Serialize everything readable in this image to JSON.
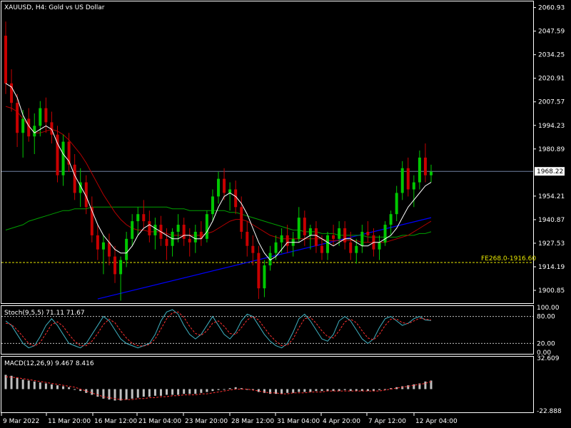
{
  "chart_data": [
    {
      "type": "candlestick",
      "title": "XAUUSD, H4:  Gold vs US Dollar",
      "y_ticks": [
        "2060.93",
        "2047.59",
        "2034.25",
        "2020.91",
        "2007.57",
        "1994.23",
        "1980.89",
        "1954.21",
        "1940.87",
        "1927.53",
        "1914.19",
        "1900.85"
      ],
      "ylim": [
        1894.0,
        2064.0
      ],
      "current_price": "1968.22",
      "current_price_value": 1968.22,
      "fe_line_value": 1916.6,
      "fe_label": "FE268.0-1916.60",
      "candles": [
        {
          "o": 2045,
          "h": 2053,
          "l": 2012,
          "c": 2018
        },
        {
          "o": 2018,
          "h": 2026,
          "l": 2002,
          "c": 2007
        },
        {
          "o": 2007,
          "h": 2012,
          "l": 1982,
          "c": 1990
        },
        {
          "o": 1990,
          "h": 2003,
          "l": 1976,
          "c": 1998
        },
        {
          "o": 1998,
          "h": 2004,
          "l": 1985,
          "c": 1988
        },
        {
          "o": 1988,
          "h": 2001,
          "l": 1978,
          "c": 1994
        },
        {
          "o": 1994,
          "h": 2008,
          "l": 1988,
          "c": 2004
        },
        {
          "o": 2004,
          "h": 2010,
          "l": 1990,
          "c": 1996
        },
        {
          "o": 1996,
          "h": 2002,
          "l": 1984,
          "c": 1989
        },
        {
          "o": 1989,
          "h": 1994,
          "l": 1962,
          "c": 1966
        },
        {
          "o": 1966,
          "h": 1989,
          "l": 1960,
          "c": 1985
        },
        {
          "o": 1985,
          "h": 1990,
          "l": 1968,
          "c": 1972
        },
        {
          "o": 1972,
          "h": 1978,
          "l": 1952,
          "c": 1956
        },
        {
          "o": 1956,
          "h": 1970,
          "l": 1948,
          "c": 1962
        },
        {
          "o": 1962,
          "h": 1966,
          "l": 1944,
          "c": 1948
        },
        {
          "o": 1948,
          "h": 1954,
          "l": 1928,
          "c": 1932
        },
        {
          "o": 1932,
          "h": 1938,
          "l": 1918,
          "c": 1924
        },
        {
          "o": 1924,
          "h": 1932,
          "l": 1910,
          "c": 1928
        },
        {
          "o": 1928,
          "h": 1933,
          "l": 1915,
          "c": 1920
        },
        {
          "o": 1920,
          "h": 1926,
          "l": 1905,
          "c": 1910
        },
        {
          "o": 1910,
          "h": 1920,
          "l": 1895,
          "c": 1918
        },
        {
          "o": 1918,
          "h": 1934,
          "l": 1914,
          "c": 1930
        },
        {
          "o": 1930,
          "h": 1944,
          "l": 1926,
          "c": 1940
        },
        {
          "o": 1940,
          "h": 1948,
          "l": 1932,
          "c": 1944
        },
        {
          "o": 1944,
          "h": 1952,
          "l": 1936,
          "c": 1940
        },
        {
          "o": 1940,
          "h": 1946,
          "l": 1928,
          "c": 1932
        },
        {
          "o": 1932,
          "h": 1942,
          "l": 1924,
          "c": 1938
        },
        {
          "o": 1938,
          "h": 1943,
          "l": 1926,
          "c": 1930
        },
        {
          "o": 1930,
          "h": 1936,
          "l": 1918,
          "c": 1926
        },
        {
          "o": 1926,
          "h": 1936,
          "l": 1920,
          "c": 1934
        },
        {
          "o": 1934,
          "h": 1944,
          "l": 1928,
          "c": 1938
        },
        {
          "o": 1938,
          "h": 1942,
          "l": 1926,
          "c": 1930
        },
        {
          "o": 1930,
          "h": 1936,
          "l": 1920,
          "c": 1928
        },
        {
          "o": 1928,
          "h": 1938,
          "l": 1922,
          "c": 1934
        },
        {
          "o": 1934,
          "h": 1940,
          "l": 1926,
          "c": 1930
        },
        {
          "o": 1930,
          "h": 1946,
          "l": 1928,
          "c": 1944
        },
        {
          "o": 1944,
          "h": 1958,
          "l": 1940,
          "c": 1954
        },
        {
          "o": 1954,
          "h": 1968,
          "l": 1950,
          "c": 1964
        },
        {
          "o": 1964,
          "h": 1970,
          "l": 1952,
          "c": 1956
        },
        {
          "o": 1956,
          "h": 1962,
          "l": 1946,
          "c": 1958
        },
        {
          "o": 1958,
          "h": 1963,
          "l": 1944,
          "c": 1948
        },
        {
          "o": 1948,
          "h": 1954,
          "l": 1930,
          "c": 1934
        },
        {
          "o": 1934,
          "h": 1940,
          "l": 1920,
          "c": 1926
        },
        {
          "o": 1926,
          "h": 1932,
          "l": 1915,
          "c": 1922
        },
        {
          "o": 1922,
          "h": 1926,
          "l": 1896,
          "c": 1902
        },
        {
          "o": 1902,
          "h": 1918,
          "l": 1897,
          "c": 1915
        },
        {
          "o": 1915,
          "h": 1926,
          "l": 1912,
          "c": 1922
        },
        {
          "o": 1922,
          "h": 1932,
          "l": 1918,
          "c": 1928
        },
        {
          "o": 1928,
          "h": 1936,
          "l": 1922,
          "c": 1932
        },
        {
          "o": 1932,
          "h": 1938,
          "l": 1922,
          "c": 1926
        },
        {
          "o": 1926,
          "h": 1934,
          "l": 1920,
          "c": 1930
        },
        {
          "o": 1930,
          "h": 1948,
          "l": 1928,
          "c": 1942
        },
        {
          "o": 1942,
          "h": 1946,
          "l": 1926,
          "c": 1932
        },
        {
          "o": 1932,
          "h": 1938,
          "l": 1924,
          "c": 1936
        },
        {
          "o": 1936,
          "h": 1940,
          "l": 1922,
          "c": 1926
        },
        {
          "o": 1926,
          "h": 1932,
          "l": 1918,
          "c": 1922
        },
        {
          "o": 1922,
          "h": 1934,
          "l": 1918,
          "c": 1932
        },
        {
          "o": 1932,
          "h": 1938,
          "l": 1926,
          "c": 1930
        },
        {
          "o": 1930,
          "h": 1940,
          "l": 1926,
          "c": 1936
        },
        {
          "o": 1936,
          "h": 1940,
          "l": 1924,
          "c": 1928
        },
        {
          "o": 1928,
          "h": 1934,
          "l": 1918,
          "c": 1922
        },
        {
          "o": 1922,
          "h": 1930,
          "l": 1916,
          "c": 1926
        },
        {
          "o": 1926,
          "h": 1938,
          "l": 1922,
          "c": 1934
        },
        {
          "o": 1934,
          "h": 1940,
          "l": 1928,
          "c": 1932
        },
        {
          "o": 1932,
          "h": 1936,
          "l": 1920,
          "c": 1924
        },
        {
          "o": 1924,
          "h": 1932,
          "l": 1918,
          "c": 1928
        },
        {
          "o": 1928,
          "h": 1940,
          "l": 1926,
          "c": 1938
        },
        {
          "o": 1938,
          "h": 1946,
          "l": 1932,
          "c": 1944
        },
        {
          "o": 1944,
          "h": 1960,
          "l": 1940,
          "c": 1956
        },
        {
          "o": 1956,
          "h": 1974,
          "l": 1952,
          "c": 1970
        },
        {
          "o": 1970,
          "h": 1976,
          "l": 1954,
          "c": 1958
        },
        {
          "o": 1958,
          "h": 1966,
          "l": 1948,
          "c": 1962
        },
        {
          "o": 1962,
          "h": 1980,
          "l": 1958,
          "c": 1976
        },
        {
          "o": 1976,
          "h": 1984,
          "l": 1962,
          "c": 1966
        },
        {
          "o": 1966,
          "h": 1972,
          "l": 1962,
          "c": 1968
        }
      ],
      "ma_white": [
        2018,
        2016,
        2010,
        2000,
        1994,
        1990,
        1992,
        1994,
        1992,
        1984,
        1978,
        1974,
        1966,
        1960,
        1954,
        1946,
        1938,
        1932,
        1928,
        1924,
        1922,
        1922,
        1926,
        1932,
        1936,
        1938,
        1936,
        1934,
        1932,
        1930,
        1930,
        1932,
        1932,
        1930,
        1930,
        1934,
        1940,
        1948,
        1954,
        1956,
        1954,
        1950,
        1944,
        1936,
        1928,
        1922,
        1918,
        1920,
        1924,
        1928,
        1928,
        1928,
        1930,
        1932,
        1932,
        1930,
        1928,
        1926,
        1928,
        1930,
        1930,
        1928,
        1926,
        1926,
        1928,
        1928,
        1930,
        1932,
        1936,
        1942,
        1948,
        1952,
        1956,
        1960,
        1962
      ],
      "ma_red": [
        2005,
        2004,
        2002,
        1998,
        1994,
        1990,
        1990,
        1991,
        1992,
        1991,
        1989,
        1986,
        1982,
        1978,
        1973,
        1967,
        1961,
        1955,
        1950,
        1945,
        1941,
        1938,
        1936,
        1935,
        1935,
        1934,
        1934,
        1934,
        1933,
        1932,
        1932,
        1932,
        1932,
        1932,
        1932,
        1933,
        1934,
        1936,
        1938,
        1940,
        1941,
        1941,
        1940,
        1938,
        1936,
        1934,
        1932,
        1931,
        1930,
        1930,
        1930,
        1930,
        1930,
        1930,
        1930,
        1930,
        1929,
        1929,
        1929,
        1929,
        1929,
        1929,
        1928,
        1928,
        1928,
        1928,
        1928,
        1929,
        1930,
        1931,
        1932,
        1934,
        1936,
        1938,
        1940
      ],
      "ma_green": [
        1935,
        1936,
        1937,
        1938,
        1940,
        1941,
        1942,
        1943,
        1944,
        1945,
        1946,
        1946,
        1947,
        1947,
        1947,
        1948,
        1948,
        1948,
        1948,
        1948,
        1948,
        1948,
        1948,
        1948,
        1948,
        1948,
        1948,
        1948,
        1948,
        1947,
        1947,
        1947,
        1946,
        1946,
        1946,
        1946,
        1946,
        1946,
        1946,
        1945,
        1945,
        1944,
        1943,
        1942,
        1941,
        1940,
        1939,
        1938,
        1937,
        1936,
        1935,
        1935,
        1934,
        1934,
        1934,
        1933,
        1933,
        1933,
        1932,
        1932,
        1932,
        1932,
        1932,
        1931,
        1931,
        1931,
        1931,
        1931,
        1931,
        1932,
        1932,
        1932,
        1933,
        1933,
        1934
      ],
      "trendline": {
        "from": [
          16,
          1896
        ],
        "to": [
          74,
          1942
        ]
      }
    },
    {
      "type": "line",
      "label": "Stoch(9,5,5) 71.11 71.67",
      "y_ticks": [
        "100.00",
        "80.00",
        "20.00",
        "0.00"
      ],
      "ylim": [
        0,
        100
      ],
      "levels": [
        80,
        20
      ],
      "k": [
        70,
        60,
        40,
        20,
        10,
        15,
        35,
        60,
        75,
        60,
        40,
        20,
        15,
        10,
        20,
        40,
        60,
        80,
        70,
        50,
        30,
        20,
        15,
        10,
        15,
        20,
        40,
        70,
        90,
        95,
        85,
        60,
        40,
        30,
        40,
        60,
        80,
        60,
        40,
        30,
        45,
        70,
        85,
        80,
        60,
        40,
        25,
        15,
        10,
        20,
        45,
        75,
        85,
        70,
        50,
        30,
        25,
        40,
        70,
        80,
        70,
        50,
        30,
        20,
        30,
        55,
        75,
        80,
        70,
        60,
        65,
        75,
        80,
        72,
        71
      ],
      "d": [
        65,
        62,
        50,
        35,
        20,
        14,
        22,
        42,
        62,
        68,
        58,
        40,
        25,
        15,
        15,
        25,
        42,
        62,
        74,
        66,
        48,
        32,
        20,
        15,
        14,
        18,
        30,
        52,
        75,
        88,
        90,
        78,
        58,
        42,
        38,
        48,
        65,
        70,
        58,
        42,
        40,
        55,
        72,
        80,
        72,
        55,
        38,
        25,
        15,
        16,
        30,
        55,
        75,
        78,
        65,
        48,
        35,
        32,
        48,
        68,
        74,
        66,
        48,
        32,
        28,
        40,
        60,
        74,
        74,
        66,
        64,
        70,
        76,
        74,
        72
      ]
    },
    {
      "type": "bar",
      "label": "MACD(12,26,9) 9.467 8.416",
      "y_ticks": [
        "32.609",
        "-22.888"
      ],
      "ylim": [
        -22.888,
        32.609
      ],
      "histogram": [
        15,
        14,
        12,
        10,
        9,
        8,
        7,
        6,
        5,
        4,
        3,
        2,
        0,
        -2,
        -4,
        -6,
        -8,
        -10,
        -11,
        -12,
        -12,
        -11,
        -10,
        -9,
        -8,
        -8,
        -7,
        -7,
        -6,
        -6,
        -6,
        -5,
        -5,
        -5,
        -4,
        -3,
        -2,
        -1,
        0,
        1,
        2,
        1,
        0,
        -1,
        -3,
        -4,
        -5,
        -5,
        -5,
        -4,
        -4,
        -3,
        -3,
        -3,
        -2,
        -2,
        -2,
        -2,
        -2,
        -1,
        -2,
        -2,
        -2,
        -2,
        -2,
        -1,
        0,
        1,
        2,
        3,
        4,
        5,
        6,
        8,
        9
      ],
      "signal": [
        13,
        12.5,
        12,
        11,
        10,
        9,
        8,
        7,
        6,
        5,
        4,
        3,
        2,
        0,
        -2,
        -4,
        -6,
        -8,
        -9,
        -10,
        -11,
        -11,
        -11,
        -10,
        -10,
        -9,
        -9,
        -8,
        -8,
        -7,
        -7,
        -6,
        -6,
        -6,
        -5,
        -5,
        -4,
        -3,
        -2,
        -1,
        0,
        0,
        0,
        -1,
        -2,
        -3,
        -4,
        -4,
        -5,
        -5,
        -4,
        -4,
        -4,
        -3,
        -3,
        -3,
        -2,
        -2,
        -2,
        -2,
        -2,
        -2,
        -2,
        -2,
        -2,
        -2,
        -1,
        0,
        1,
        2,
        3,
        4,
        5,
        6,
        8
      ]
    }
  ],
  "x_labels": [
    "9 Mar 2022",
    "11 Mar 20:00",
    "16 Mar 12:00",
    "21 Mar 04:00",
    "23 Mar 20:00",
    "28 Mar 12:00",
    "31 Mar 04:00",
    "4 Apr 20:00",
    "7 Apr 12:00",
    "12 Apr 04:00"
  ],
  "colors": {
    "bull": "#00c800",
    "bear": "#c80000",
    "ma_white": "#ffffff",
    "ma_red": "#b40000",
    "ma_green": "#00a000",
    "trend": "#0000ff",
    "grid_line": "#7080a0",
    "fe": "#e6e600",
    "stoch_k": "#3fb0c0",
    "stoch_d": "#ff3030",
    "macd_hist": "#c0c0c0",
    "macd_sig": "#ff3030"
  }
}
